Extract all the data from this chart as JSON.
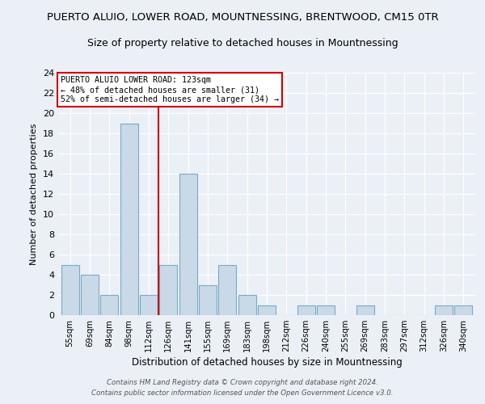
{
  "title": "PUERTO ALUIO, LOWER ROAD, MOUNTNESSING, BRENTWOOD, CM15 0TR",
  "subtitle": "Size of property relative to detached houses in Mountnessing",
  "xlabel": "Distribution of detached houses by size in Mountnessing",
  "ylabel": "Number of detached properties",
  "categories": [
    "55sqm",
    "69sqm",
    "84sqm",
    "98sqm",
    "112sqm",
    "126sqm",
    "141sqm",
    "155sqm",
    "169sqm",
    "183sqm",
    "198sqm",
    "212sqm",
    "226sqm",
    "240sqm",
    "255sqm",
    "269sqm",
    "283sqm",
    "297sqm",
    "312sqm",
    "326sqm",
    "340sqm"
  ],
  "values": [
    5,
    4,
    2,
    19,
    2,
    5,
    14,
    3,
    5,
    2,
    1,
    0,
    1,
    1,
    0,
    1,
    0,
    0,
    0,
    1,
    1
  ],
  "bar_color": "#c9d9e8",
  "bar_edge_color": "#7aaac8",
  "vline_x": 4.5,
  "vline_color": "#cc0000",
  "annotation_box_color": "#cc0000",
  "annotation_title": "PUERTO ALUIO LOWER ROAD: 123sqm",
  "annotation_line1": "← 48% of detached houses are smaller (31)",
  "annotation_line2": "52% of semi-detached houses are larger (34) →",
  "ylim": [
    0,
    24
  ],
  "yticks": [
    0,
    2,
    4,
    6,
    8,
    10,
    12,
    14,
    16,
    18,
    20,
    22,
    24
  ],
  "footer1": "Contains HM Land Registry data © Crown copyright and database right 2024.",
  "footer2": "Contains public sector information licensed under the Open Government Licence v3.0.",
  "bg_color": "#eaf0f6",
  "grid_color": "#ffffff",
  "title_fontsize": 9.5,
  "subtitle_fontsize": 9
}
